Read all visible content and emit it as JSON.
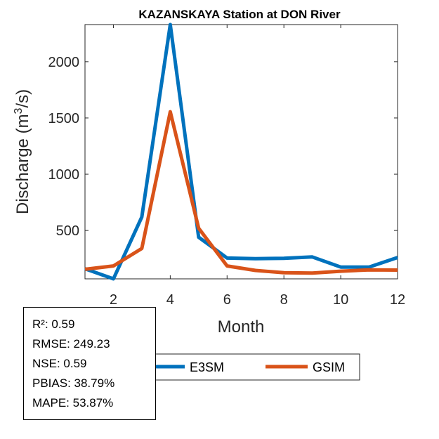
{
  "chart_data": {
    "type": "line",
    "title": "KAZANSKAYA  Station at  DON  River",
    "xlabel": "Month",
    "ylabel_main": "Discharge (m",
    "ylabel_sup": "3",
    "ylabel_tail": "/s)",
    "xlim": [
      1,
      12
    ],
    "ylim": [
      70,
      2330
    ],
    "xticks": [
      2,
      4,
      6,
      8,
      10,
      12
    ],
    "yticks": [
      500,
      1000,
      1500,
      2000
    ],
    "x": [
      1,
      2,
      3,
      4,
      5,
      6,
      7,
      8,
      9,
      10,
      11,
      12
    ],
    "series": [
      {
        "name": "E3SM",
        "color": "#0072BD",
        "values": [
          160,
          70,
          620,
          2330,
          440,
          255,
          250,
          252,
          265,
          175,
          175,
          260
        ]
      },
      {
        "name": "GSIM",
        "color": "#D95319",
        "values": [
          155,
          185,
          340,
          1555,
          520,
          185,
          145,
          125,
          122,
          138,
          150,
          148
        ]
      }
    ],
    "legend_position": "bottom-center"
  },
  "stats": {
    "r2": "R²: 0.59",
    "rmse": "RMSE: 249.23",
    "nse": "NSE: 0.59",
    "pbias": "PBIAS: 38.79%",
    "mape": "MAPE: 53.87%"
  }
}
